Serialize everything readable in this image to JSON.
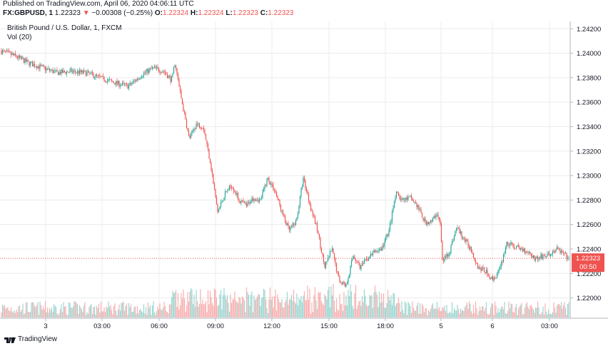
{
  "header": {
    "published": "Published on TradingView.com, April 06, 2020 04:06:11 UTC",
    "symbol": "FX:GBPUSD, 1",
    "last": "1.22323",
    "arrow": "▼",
    "change": "−0.00308 (−0.25%)",
    "o_label": "O:",
    "o_value": "1.22324",
    "h_label": "H:",
    "h_value": "1.22324",
    "l_label": "L:",
    "l_value": "1.22323",
    "c_label": "C:",
    "c_value": "1.22323"
  },
  "legend": {
    "title": "British Pound / U.S. Dollar, 1, FXCM",
    "volume": "Vol (20)"
  },
  "footer": {
    "brand": "TradingView"
  },
  "colors": {
    "up": "#26a69a",
    "down": "#ef5350",
    "grid": "#ececec",
    "axis": "#131722"
  },
  "chart_data": {
    "type": "candlestick",
    "title": "British Pound / U.S. Dollar, 1, FXCM",
    "y_ticks": [
      "1.24200",
      "1.24000",
      "1.23800",
      "1.23600",
      "1.23400",
      "1.23200",
      "1.23000",
      "1.22800",
      "1.22600",
      "1.22400",
      "1.22200",
      "1.22000"
    ],
    "ylim": [
      1.2184,
      1.2426
    ],
    "x_ticks": [
      "3",
      "03:00",
      "06:00",
      "09:00",
      "12:00",
      "15:00",
      "18:00",
      "5",
      "6",
      "03:00"
    ],
    "last_price": "1.22323",
    "countdown": "00:50",
    "close_path": [
      [
        0,
        1.2402
      ],
      [
        20,
        1.2398
      ],
      [
        40,
        1.2392
      ],
      [
        60,
        1.2388
      ],
      [
        80,
        1.2384
      ],
      [
        100,
        1.2385
      ],
      [
        120,
        1.2384
      ],
      [
        140,
        1.238
      ],
      [
        160,
        1.2376
      ],
      [
        180,
        1.2373
      ],
      [
        200,
        1.2383
      ],
      [
        215,
        1.2388
      ],
      [
        230,
        1.2385
      ],
      [
        240,
        1.2378
      ],
      [
        245,
        1.2392
      ],
      [
        255,
        1.236
      ],
      [
        265,
        1.233
      ],
      [
        275,
        1.2342
      ],
      [
        285,
        1.234
      ],
      [
        295,
        1.231
      ],
      [
        305,
        1.227
      ],
      [
        315,
        1.2285
      ],
      [
        325,
        1.2292
      ],
      [
        335,
        1.228
      ],
      [
        345,
        1.2275
      ],
      [
        355,
        1.2282
      ],
      [
        365,
        1.228
      ],
      [
        375,
        1.2298
      ],
      [
        385,
        1.2288
      ],
      [
        395,
        1.227
      ],
      [
        405,
        1.2255
      ],
      [
        415,
        1.2262
      ],
      [
        425,
        1.2298
      ],
      [
        435,
        1.2275
      ],
      [
        445,
        1.2255
      ],
      [
        455,
        1.2225
      ],
      [
        465,
        1.224
      ],
      [
        475,
        1.2215
      ],
      [
        485,
        1.221
      ],
      [
        495,
        1.2235
      ],
      [
        505,
        1.2225
      ],
      [
        515,
        1.2232
      ],
      [
        525,
        1.2238
      ],
      [
        535,
        1.224
      ],
      [
        545,
        1.2255
      ],
      [
        555,
        1.2285
      ],
      [
        565,
        1.228
      ],
      [
        575,
        1.2282
      ],
      [
        585,
        1.2275
      ],
      [
        595,
        1.2262
      ],
      [
        605,
        1.2262
      ],
      [
        612,
        1.227
      ],
      [
        617,
        1.226
      ],
      [
        620,
        1.223
      ],
      [
        630,
        1.2238
      ],
      [
        640,
        1.2258
      ],
      [
        650,
        1.2248
      ],
      [
        660,
        1.224
      ],
      [
        670,
        1.2225
      ],
      [
        680,
        1.2222
      ],
      [
        690,
        1.2215
      ],
      [
        700,
        1.2222
      ],
      [
        710,
        1.2245
      ],
      [
        720,
        1.2242
      ],
      [
        730,
        1.224
      ],
      [
        740,
        1.2238
      ],
      [
        750,
        1.2232
      ],
      [
        760,
        1.2234
      ],
      [
        770,
        1.2235
      ],
      [
        780,
        1.224
      ],
      [
        790,
        1.2236
      ],
      [
        797,
        1.2232
      ]
    ]
  }
}
